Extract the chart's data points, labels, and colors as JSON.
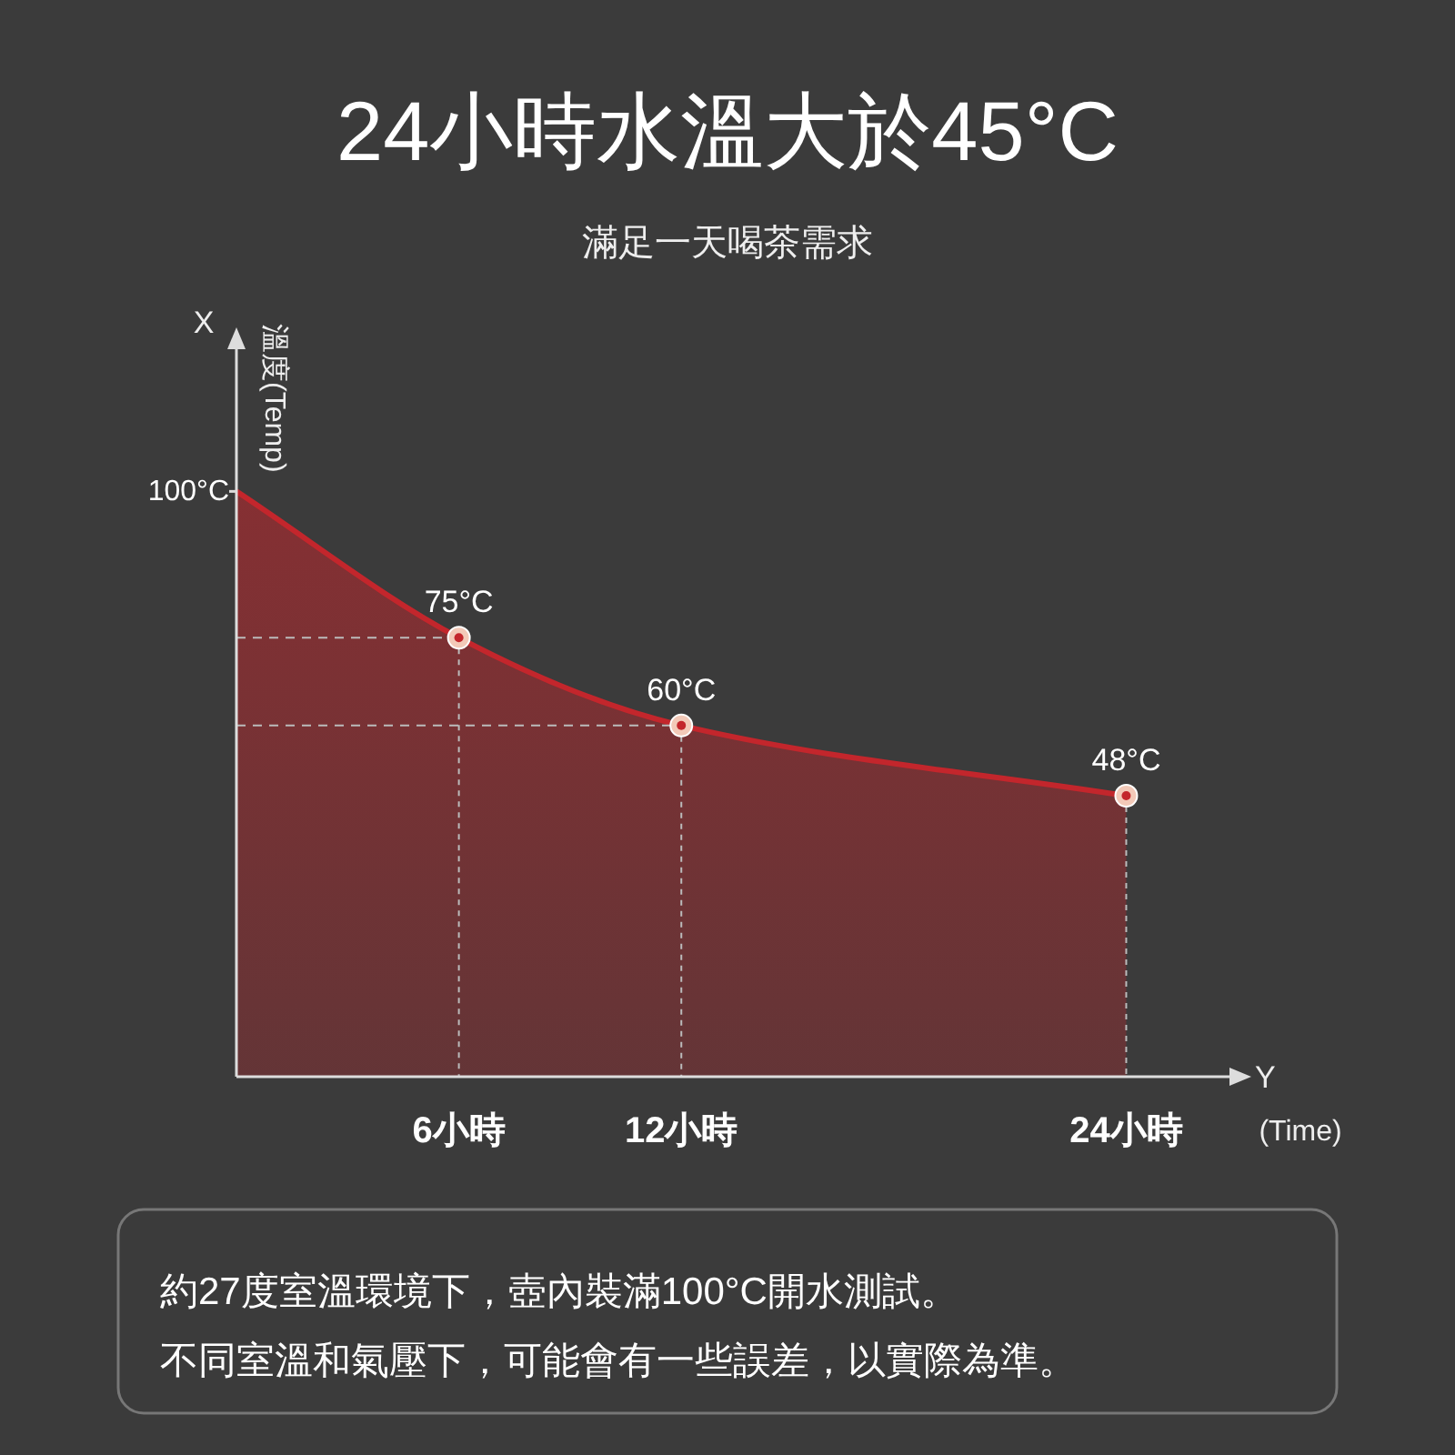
{
  "chart_data": {
    "type": "area",
    "title": "24小時水溫大於45°C",
    "subtitle": "滿足一天喝茶需求",
    "ylabel": "溫度(Temp)",
    "xlabel": "(Time)",
    "annotations": [
      "X",
      "Y",
      "約27度室溫環境下，壺內裝滿100°C開水測試。",
      "不同室溫和氣壓下，可能會有一些誤差，以實際為準。"
    ],
    "x": [
      0,
      6,
      12,
      24
    ],
    "values": [
      100,
      75,
      60,
      48
    ],
    "value_labels": [
      null,
      "75°C",
      "60°C",
      "48°C"
    ],
    "color": "#c3262c",
    "xlim": [
      0,
      26
    ],
    "ylim": [
      0,
      110
    ],
    "xticks": [
      {
        "value": 6,
        "label": "6小時"
      },
      {
        "value": 12,
        "label": "12小時"
      },
      {
        "value": 24,
        "label": "24小時"
      }
    ],
    "yticks": [
      {
        "value": 100,
        "label": "100°C"
      }
    ],
    "marker": "circle",
    "ref_lines": [
      {
        "axis": "y",
        "value": 75,
        "line_style": "dashed"
      },
      {
        "axis": "y",
        "value": 60,
        "line_style": "dashed"
      }
    ]
  }
}
